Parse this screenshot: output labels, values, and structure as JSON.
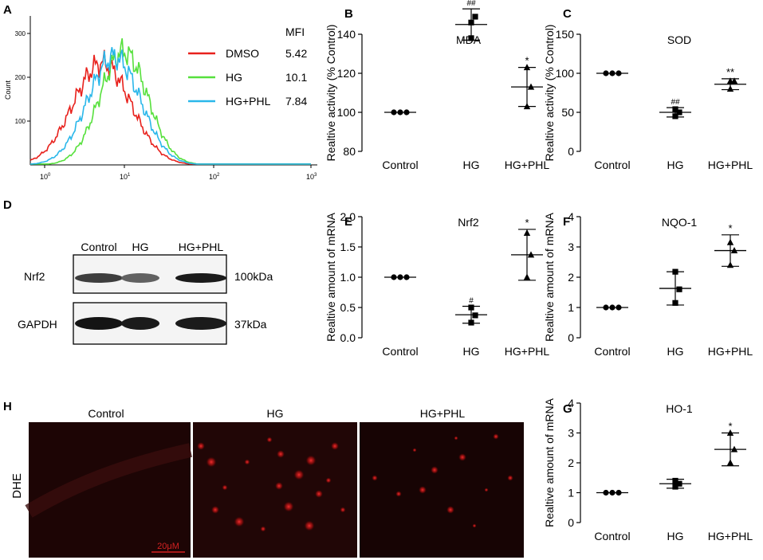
{
  "panels": {
    "A": "A",
    "B": "B",
    "C": "C",
    "D": "D",
    "E": "E",
    "F": "F",
    "G": "G",
    "H": "H"
  },
  "colors": {
    "dmso": "#e8211c",
    "hg": "#56e03c",
    "hgphl": "#2ab7ea",
    "scale_bar": "#d42222"
  },
  "flow": {
    "ylabel": "Count",
    "yticks": [
      "100",
      "200",
      "300"
    ],
    "xticks": [
      {
        "base": "10",
        "exp": "0"
      },
      {
        "base": "10",
        "exp": "1"
      },
      {
        "base": "10",
        "exp": "2"
      },
      {
        "base": "10",
        "exp": "3"
      }
    ],
    "mfi_header": "MFI",
    "legend": [
      {
        "name": "DMSO",
        "mfi": "5.42"
      },
      {
        "name": "HG",
        "mfi": "10.1"
      },
      {
        "name": "HG+PHL",
        "mfi": "7.84"
      }
    ]
  },
  "western": {
    "lanes": [
      "Control",
      "HG",
      "HG+PHL"
    ],
    "rows": [
      {
        "protein": "Nrf2",
        "size": "100kDa",
        "intensity": [
          0.7,
          0.45,
          0.95
        ]
      },
      {
        "protein": "GAPDH",
        "size": "37kDa",
        "intensity": [
          1.0,
          0.95,
          0.95
        ]
      }
    ]
  },
  "dhe": {
    "row_label": "DHE",
    "columns": [
      "Control",
      "HG",
      "HG+PHL"
    ],
    "scale_bar": "20μM"
  },
  "chart_data": [
    {
      "panel": "B",
      "type": "scatter",
      "title": "MDA",
      "ylabel": "Realtive activity (% Control)",
      "ylim": [
        80,
        140
      ],
      "yticks": [
        "80",
        "100",
        "120",
        "140"
      ],
      "categories": [
        "Control",
        "HG",
        "HG+PHL"
      ],
      "markers": [
        "circle",
        "square",
        "triangle"
      ],
      "points": [
        [
          100,
          100,
          100
        ],
        [
          138,
          149,
          146
        ],
        [
          103,
          113,
          123
        ]
      ],
      "mean": [
        100,
        145,
        113
      ],
      "sd": [
        0,
        8,
        10
      ],
      "annotations": [
        "",
        "##",
        "*"
      ]
    },
    {
      "panel": "C",
      "type": "scatter",
      "title": "SOD",
      "ylabel": "Realtive activity (% Control)",
      "ylim": [
        0,
        150
      ],
      "yticks": [
        "0",
        "50",
        "100",
        "150"
      ],
      "categories": [
        "Control",
        "HG",
        "HG+PHL"
      ],
      "markers": [
        "circle",
        "square",
        "triangle"
      ],
      "points": [
        [
          100,
          100,
          100
        ],
        [
          45,
          50,
          54
        ],
        [
          80,
          90,
          90
        ]
      ],
      "mean": [
        100,
        50,
        86
      ],
      "sd": [
        0,
        6,
        7
      ],
      "annotations": [
        "",
        "##",
        "**"
      ]
    },
    {
      "panel": "E",
      "type": "scatter",
      "title": "Nrf2",
      "ylabel": "Realtive amount of mRNA",
      "ylim": [
        0,
        2.0
      ],
      "yticks": [
        "0.0",
        "0.5",
        "1.0",
        "1.5",
        "2.0"
      ],
      "categories": [
        "Control",
        "HG",
        "HG+PHL"
      ],
      "markers": [
        "circle",
        "square",
        "triangle"
      ],
      "points": [
        [
          1.0,
          1.0,
          1.0
        ],
        [
          0.25,
          0.37,
          0.5
        ],
        [
          1.0,
          1.37,
          1.73
        ]
      ],
      "mean": [
        1.0,
        0.38,
        1.37
      ],
      "sd": [
        0,
        0.14,
        0.42
      ],
      "annotations": [
        "",
        "#",
        "*"
      ]
    },
    {
      "panel": "F",
      "type": "scatter",
      "title": "NQO-1",
      "ylabel": "Realtive amount of mRNA",
      "ylim": [
        0,
        4
      ],
      "yticks": [
        "0",
        "1",
        "2",
        "3",
        "4"
      ],
      "categories": [
        "Control",
        "HG",
        "HG+PHL"
      ],
      "markers": [
        "circle",
        "square",
        "triangle"
      ],
      "points": [
        [
          1.0,
          1.0,
          1.0
        ],
        [
          1.15,
          1.6,
          2.18
        ],
        [
          2.4,
          2.88,
          3.15
        ]
      ],
      "mean": [
        1.0,
        1.63,
        2.88
      ],
      "sd": [
        0,
        0.55,
        0.52
      ],
      "annotations": [
        "",
        "",
        "*"
      ]
    },
    {
      "panel": "G",
      "type": "scatter",
      "title": "HO-1",
      "ylabel": "Realtive amount of mRNA",
      "ylim": [
        0,
        4
      ],
      "yticks": [
        "0",
        "1",
        "2",
        "3",
        "4"
      ],
      "categories": [
        "Control",
        "HG",
        "HG+PHL"
      ],
      "markers": [
        "circle",
        "square",
        "triangle"
      ],
      "points": [
        [
          1.0,
          1.0,
          1.0
        ],
        [
          1.2,
          1.3,
          1.4
        ],
        [
          2.0,
          2.45,
          3.0
        ]
      ],
      "mean": [
        1.0,
        1.3,
        2.45
      ],
      "sd": [
        0,
        0.15,
        0.55
      ],
      "annotations": [
        "",
        "",
        "*"
      ]
    }
  ]
}
